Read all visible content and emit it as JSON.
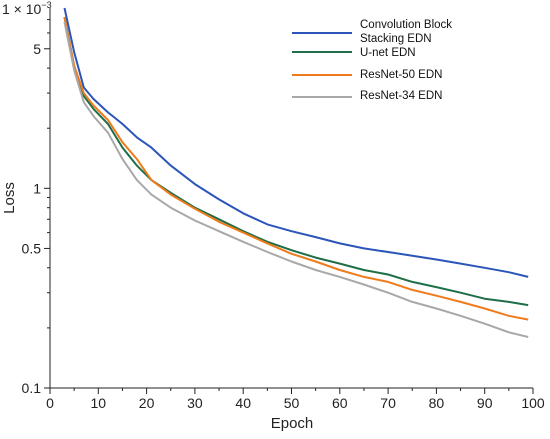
{
  "chart_data": {
    "type": "line",
    "title": "",
    "xlabel": "Epoch",
    "ylabel": "Loss",
    "xlim": [
      0,
      100
    ],
    "ylim": [
      0.0001,
      0.008
    ],
    "yscale": "log",
    "y_multiplier_label": {
      "base": "1 × 10",
      "exponent": "−3"
    },
    "x_ticks": [
      {
        "value": 0,
        "label": "0"
      },
      {
        "value": 10,
        "label": "10"
      },
      {
        "value": 20,
        "label": "20"
      },
      {
        "value": 30,
        "label": "30"
      },
      {
        "value": 40,
        "label": "40"
      },
      {
        "value": 50,
        "label": "50"
      },
      {
        "value": 60,
        "label": "60"
      },
      {
        "value": 70,
        "label": "70"
      },
      {
        "value": 80,
        "label": "80"
      },
      {
        "value": 90,
        "label": "90"
      },
      {
        "value": 100,
        "label": "100"
      }
    ],
    "y_ticks": [
      {
        "value": 0.0001,
        "label": "0.1"
      },
      {
        "value": 0.0005,
        "label": "0.5"
      },
      {
        "value": 0.001,
        "label": "1"
      },
      {
        "value": 0.005,
        "label": "5"
      }
    ],
    "grid": false,
    "legend_position": "top-right",
    "x": [
      3,
      5,
      7,
      9,
      12,
      15,
      18,
      21,
      25,
      30,
      35,
      40,
      45,
      50,
      55,
      60,
      65,
      70,
      75,
      80,
      85,
      90,
      95,
      99
    ],
    "series": [
      {
        "name": "Convolution Block Stacking EDN",
        "color": "#2b55b8",
        "values": [
          0.008,
          0.0048,
          0.0032,
          0.0028,
          0.0024,
          0.0021,
          0.0018,
          0.0016,
          0.0013,
          0.00105,
          0.00088,
          0.00075,
          0.00066,
          0.00061,
          0.00057,
          0.00053,
          0.0005,
          0.00048,
          0.00046,
          0.00044,
          0.00042,
          0.0004,
          0.00038,
          0.00036
        ]
      },
      {
        "name": "U-net EDN",
        "color": "#1e6e47",
        "values": [
          0.0072,
          0.0041,
          0.0029,
          0.0025,
          0.0021,
          0.0016,
          0.0013,
          0.0011,
          0.00095,
          0.0008,
          0.0007,
          0.00061,
          0.00054,
          0.00049,
          0.00045,
          0.00042,
          0.00039,
          0.00037,
          0.00034,
          0.00032,
          0.0003,
          0.00028,
          0.00027,
          0.00026
        ]
      },
      {
        "name": "ResNet-50 EDN",
        "color": "#f07b1c",
        "values": [
          0.0072,
          0.0041,
          0.003,
          0.0026,
          0.0022,
          0.0017,
          0.0014,
          0.0011,
          0.00093,
          0.00079,
          0.00068,
          0.0006,
          0.00053,
          0.00047,
          0.00043,
          0.00039,
          0.00036,
          0.00034,
          0.00031,
          0.00029,
          0.00027,
          0.00025,
          0.00023,
          0.00022
        ]
      },
      {
        "name": "ResNet-34 EDN",
        "color": "#a8a8a8",
        "values": [
          0.0068,
          0.0039,
          0.0027,
          0.0023,
          0.0019,
          0.0014,
          0.0011,
          0.00093,
          0.0008,
          0.00069,
          0.00061,
          0.00054,
          0.00048,
          0.00043,
          0.00039,
          0.00036,
          0.00033,
          0.0003,
          0.00027,
          0.00025,
          0.00023,
          0.00021,
          0.00019,
          0.00018
        ]
      }
    ]
  }
}
